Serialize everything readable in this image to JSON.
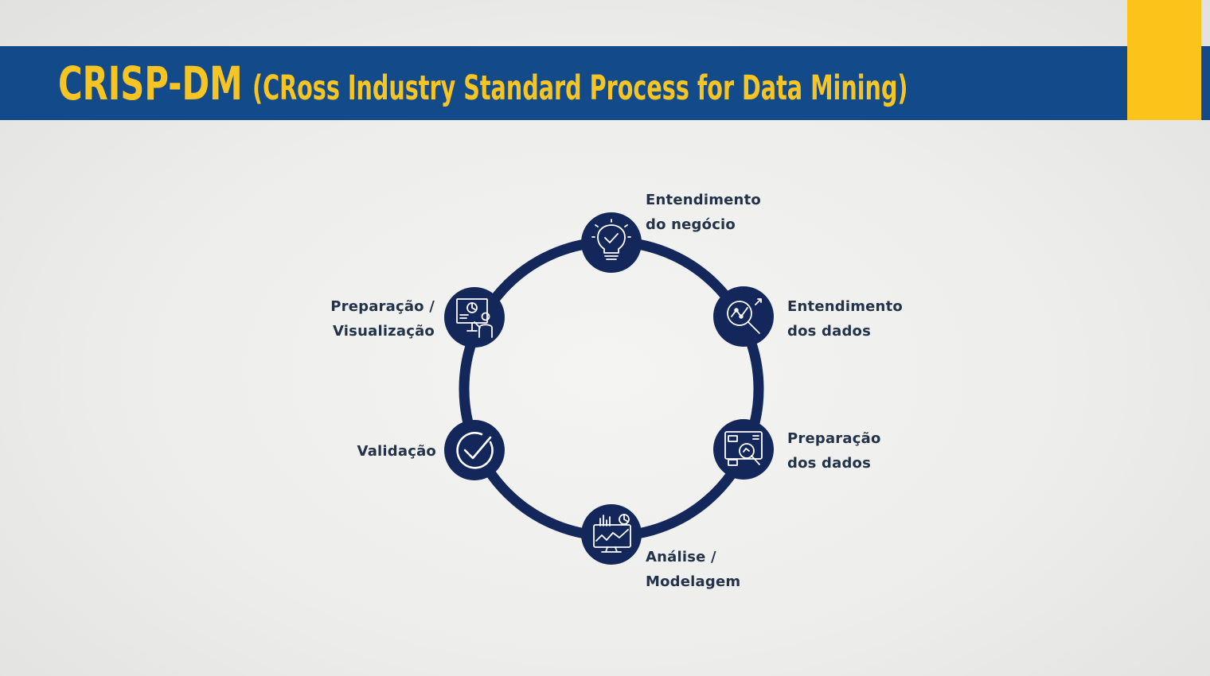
{
  "header": {
    "title_main": "CRISP-DM",
    "title_sub": "(CRoss Industry Standard Process for Data Mining)"
  },
  "colors": {
    "header_blue": "#134b8a",
    "accent_yellow": "#fcc31a",
    "title_yellow": "#f6c524",
    "ring_navy": "#14275a",
    "label_text": "#223349"
  },
  "cycle": {
    "steps": [
      {
        "icon": "lightbulb-check-icon",
        "label_line1": "Entendimento",
        "label_line2": "do negócio"
      },
      {
        "icon": "magnifier-chart-icon",
        "label_line1": "Entendimento",
        "label_line2": "dos dados"
      },
      {
        "icon": "data-preparation-icon",
        "label_line1": "Preparação",
        "label_line2": "dos dados"
      },
      {
        "icon": "analytics-dashboard-icon",
        "label_line1": "Análise /",
        "label_line2": "Modelagem"
      },
      {
        "icon": "checkmark-circle-icon",
        "label_line1": "Validação",
        "label_line2": ""
      },
      {
        "icon": "presentation-icon",
        "label_line1": "Preparação /",
        "label_line2": "Visualização"
      }
    ]
  }
}
